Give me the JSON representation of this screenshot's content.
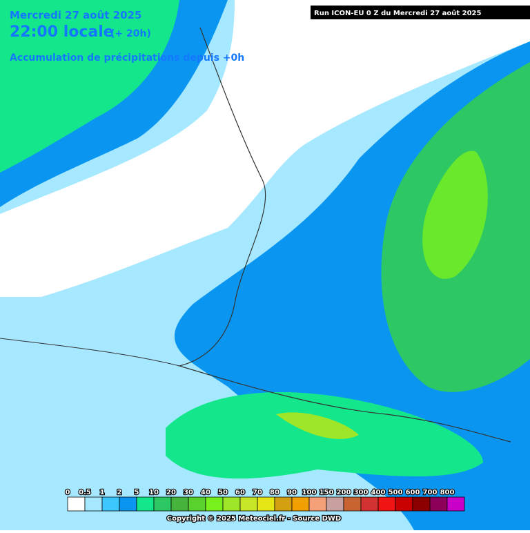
{
  "header": {
    "date": "Mercredi 27 août 2025",
    "time": "22:00 locale",
    "lead": "(+ 20h)",
    "subtitle": "Accumulation de précipitations depuis +0h",
    "run": "Run ICON-EU 0 Z du Mercredi 27 août 2025"
  },
  "legend": {
    "items": [
      {
        "value": 0,
        "color": "#ffffff"
      },
      {
        "value": 0.5,
        "color": "#a6e8ff"
      },
      {
        "value": 1,
        "color": "#3cc8ff"
      },
      {
        "value": 2,
        "color": "#0a96f0"
      },
      {
        "value": 5,
        "color": "#14e68c"
      },
      {
        "value": 10,
        "color": "#2dc864"
      },
      {
        "value": 20,
        "color": "#46b43c"
      },
      {
        "value": 30,
        "color": "#5ad22d"
      },
      {
        "value": 40,
        "color": "#78f01e"
      },
      {
        "value": 50,
        "color": "#a0e628"
      },
      {
        "value": 60,
        "color": "#c8e628"
      },
      {
        "value": 70,
        "color": "#e6e614"
      },
      {
        "value": 80,
        "color": "#d2a010"
      },
      {
        "value": 90,
        "color": "#f0a000"
      },
      {
        "value": 100,
        "color": "#f5a078"
      },
      {
        "value": 150,
        "color": "#c8a0a0"
      },
      {
        "value": 200,
        "color": "#c86432"
      },
      {
        "value": 300,
        "color": "#d23232"
      },
      {
        "value": 400,
        "color": "#f01414"
      },
      {
        "value": 500,
        "color": "#c80000"
      },
      {
        "value": 600,
        "color": "#8c0000"
      },
      {
        "value": 700,
        "color": "#8c005a"
      },
      {
        "value": 800,
        "color": "#c800c8"
      }
    ]
  },
  "footer": {
    "copyright": "Copyright © 2025 Meteociel.fr - Source DWD"
  }
}
